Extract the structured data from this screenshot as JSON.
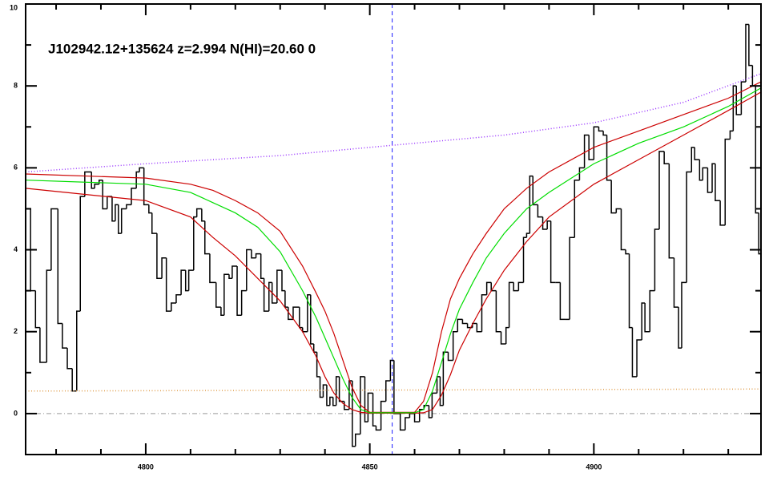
{
  "chart_data": {
    "type": "line",
    "title": "J102942.12+135624 z=2.994 N(HI)=20.60 0",
    "xlim": [
      4773.2,
      4937.3
    ],
    "ylim": [
      -1,
      10
    ],
    "xticks": [
      4800,
      4850,
      4900
    ],
    "xminor_ticks": [
      4780,
      4790,
      4810,
      4820,
      4830,
      4840,
      4860,
      4870,
      4880,
      4890,
      4910,
      4920,
      4930
    ],
    "yticks": [
      0,
      2,
      4,
      6,
      8,
      10
    ],
    "yminor_ticks": [
      -1,
      1,
      3,
      5,
      7,
      9
    ],
    "vline": {
      "value": 4855,
      "color": "#1a1aff"
    },
    "hline": {
      "value": 0,
      "color": "#999999"
    },
    "series": [
      {
        "style": "step",
        "color": "#000000",
        "x": [
          4773.2,
          4774.3,
          4775.4,
          4776.4,
          4777.9,
          4778.9,
          4780.4,
          4781.4,
          4782.5,
          4783.6,
          4784.6,
          4785.4,
          4786.4,
          4787.9,
          4788.6,
          4789.6,
          4790.4,
          4791.4,
          4792.5,
          4793.2,
          4793.9,
          4794.6,
          4795.7,
          4796.8,
          4797.9,
          4798.6,
          4799.6,
          4800.7,
          4801.4,
          4802.5,
          4803.6,
          4804.6,
          4805.7,
          4806.8,
          4807.9,
          4808.9,
          4809.6,
          4810.7,
          4811.4,
          4812.5,
          4813.2,
          4814.3,
          4815.7,
          4816.8,
          4817.5,
          4818.6,
          4819.3,
          4820.4,
          4821.4,
          4822.5,
          4823.6,
          4824.6,
          4825.7,
          4826.4,
          4827.5,
          4828.2,
          4829.3,
          4830.4,
          4831.1,
          4831.8,
          4832.9,
          4834.3,
          4835.0,
          4836.1,
          4836.8,
          4837.5,
          4838.2,
          4838.9,
          4839.6,
          4840.4,
          4841.1,
          4841.8,
          4842.5,
          4843.2,
          4844.3,
          4845.4,
          4846.1,
          4846.8,
          4847.9,
          4848.9,
          4849.6,
          4850.7,
          4851.4,
          4852.5,
          4853.6,
          4854.6,
          4855.4,
          4856.8,
          4857.9,
          4858.9,
          4860.0,
          4861.1,
          4862.1,
          4863.2,
          4863.9,
          4865.0,
          4865.7,
          4866.4,
          4867.5,
          4868.6,
          4869.6,
          4870.7,
          4871.8,
          4872.9,
          4873.9,
          4875.0,
          4876.1,
          4877.1,
          4878.2,
          4879.3,
          4880.4,
          4881.1,
          4882.1,
          4883.2,
          4884.3,
          4885.0,
          4885.7,
          4886.4,
          4887.5,
          4888.6,
          4889.6,
          4890.4,
          4891.4,
          4892.5,
          4893.6,
          4894.6,
          4895.7,
          4896.8,
          4897.9,
          4898.9,
          4900.0,
          4901.1,
          4902.1,
          4902.9,
          4903.9,
          4905.0,
          4906.1,
          4907.1,
          4907.9,
          4908.6,
          4909.6,
          4910.7,
          4911.4,
          4912.5,
          4913.6,
          4914.6,
          4915.7,
          4916.8,
          4917.9,
          4918.9,
          4919.6,
          4920.7,
          4921.8,
          4922.5,
          4923.6,
          4924.3,
          4925.4,
          4926.4,
          4927.1,
          4928.2,
          4929.3,
          4930.4,
          4931.1,
          4931.8,
          4932.9,
          4933.9,
          4934.6,
          4935.4,
          4936.1,
          4936.8
        ],
        "values": [
          5.0,
          3.0,
          2.1,
          1.25,
          3.5,
          5.0,
          2.2,
          1.6,
          1.1,
          0.55,
          2.5,
          5.3,
          5.9,
          5.5,
          5.6,
          5.7,
          5.0,
          5.3,
          4.7,
          5.1,
          4.4,
          5.0,
          5.1,
          5.5,
          5.9,
          6.0,
          5.1,
          4.9,
          4.4,
          3.3,
          3.8,
          2.5,
          2.7,
          2.9,
          3.5,
          3.0,
          3.5,
          4.8,
          5.0,
          4.7,
          3.9,
          3.2,
          2.6,
          2.4,
          3.4,
          3.3,
          3.6,
          2.4,
          3.0,
          4.0,
          3.8,
          3.9,
          3.3,
          2.5,
          3.2,
          2.7,
          3.5,
          3.0,
          2.6,
          2.3,
          2.6,
          2.1,
          2.0,
          2.9,
          1.7,
          1.5,
          0.9,
          0.4,
          0.7,
          0.2,
          0.4,
          0.2,
          0.9,
          0.3,
          0.1,
          0.8,
          -0.8,
          -0.5,
          0.9,
          -0.2,
          0.5,
          -0.3,
          -0.4,
          0.3,
          0.8,
          1.3,
          0.0,
          -0.4,
          -0.1,
          0.0,
          -0.2,
          0.1,
          0.2,
          -0.1,
          0.5,
          0.9,
          0.2,
          1.5,
          1.3,
          2.0,
          2.3,
          2.2,
          2.1,
          2.2,
          2.0,
          2.9,
          3.2,
          3.0,
          2.0,
          1.7,
          2.1,
          3.2,
          3.0,
          3.2,
          4.3,
          4.4,
          5.8,
          5.1,
          4.8,
          4.5,
          4.7,
          3.2,
          3.2,
          2.3,
          2.3,
          4.3,
          5.7,
          6.0,
          6.8,
          6.2,
          7.0,
          6.9,
          6.8,
          5.7,
          4.9,
          5.0,
          4.0,
          3.9,
          2.1,
          0.9,
          1.8,
          2.7,
          2.0,
          3.0,
          4.5,
          6.4,
          6.1,
          3.8,
          2.6,
          1.6,
          3.2,
          5.9,
          6.5,
          6.2,
          5.7,
          6.0,
          5.4,
          6.1,
          5.2,
          4.6,
          6.7,
          6.9,
          8.0,
          7.3,
          8.1,
          9.5,
          8.5,
          8.0,
          4.9,
          3.9
        ]
      },
      {
        "style": "dotted",
        "color": "#e0a050",
        "x": [
          4773.2,
          4937.3
        ],
        "values": [
          0.55,
          0.6
        ]
      },
      {
        "style": "dotted",
        "color": "#9933ff",
        "x": [
          4773.2,
          4800,
          4830,
          4855,
          4880,
          4900,
          4920,
          4937.3
        ],
        "values": [
          5.9,
          6.1,
          6.3,
          6.55,
          6.8,
          7.1,
          7.6,
          8.3
        ]
      },
      {
        "style": "solid",
        "color": "#cc0000",
        "x": [
          4773.2,
          4800,
          4810,
          4815,
          4820,
          4825,
          4830,
          4835,
          4838,
          4840,
          4842,
          4844,
          4846,
          4848,
          4850,
          4860,
          4862,
          4864,
          4866,
          4868,
          4870,
          4873,
          4876,
          4880,
          4885,
          4890,
          4900,
          4910,
          4920,
          4930,
          4937.3
        ],
        "values": [
          5.85,
          5.75,
          5.6,
          5.45,
          5.2,
          4.9,
          4.45,
          3.6,
          2.95,
          2.5,
          1.95,
          1.3,
          0.65,
          0.2,
          0.03,
          0.03,
          0.3,
          1.0,
          2.0,
          2.8,
          3.3,
          3.9,
          4.4,
          5.0,
          5.5,
          5.9,
          6.5,
          6.9,
          7.3,
          7.7,
          8.1
        ]
      },
      {
        "style": "solid",
        "color": "#cc0000",
        "x": [
          4773.2,
          4800,
          4810,
          4815,
          4820,
          4825,
          4830,
          4835,
          4838,
          4840,
          4842,
          4844,
          4846,
          4848,
          4850,
          4860,
          4862,
          4864,
          4866,
          4868,
          4870,
          4873,
          4876,
          4880,
          4885,
          4890,
          4900,
          4910,
          4920,
          4930,
          4937.3
        ],
        "values": [
          5.5,
          5.2,
          4.8,
          4.3,
          3.85,
          3.3,
          2.75,
          2.0,
          1.4,
          0.9,
          0.5,
          0.25,
          0.1,
          0.03,
          0.01,
          0.01,
          0.02,
          0.1,
          0.45,
          0.95,
          1.55,
          2.2,
          2.8,
          3.5,
          4.2,
          4.8,
          5.6,
          6.2,
          6.8,
          7.4,
          7.85
        ]
      },
      {
        "style": "solid",
        "color": "#00dd00",
        "x": [
          4773.2,
          4800,
          4810,
          4815,
          4820,
          4825,
          4830,
          4835,
          4838,
          4840,
          4842,
          4844,
          4846,
          4848,
          4850,
          4860,
          4862,
          4864,
          4866,
          4868,
          4870,
          4873,
          4876,
          4880,
          4885,
          4890,
          4900,
          4910,
          4920,
          4930,
          4937.3
        ],
        "values": [
          5.7,
          5.6,
          5.4,
          5.15,
          4.9,
          4.55,
          3.95,
          3.0,
          2.35,
          1.85,
          1.35,
          0.85,
          0.4,
          0.1,
          0.02,
          0.02,
          0.1,
          0.55,
          1.25,
          1.95,
          2.55,
          3.2,
          3.8,
          4.4,
          5.0,
          5.4,
          6.1,
          6.6,
          7.0,
          7.5,
          7.95
        ]
      }
    ]
  }
}
